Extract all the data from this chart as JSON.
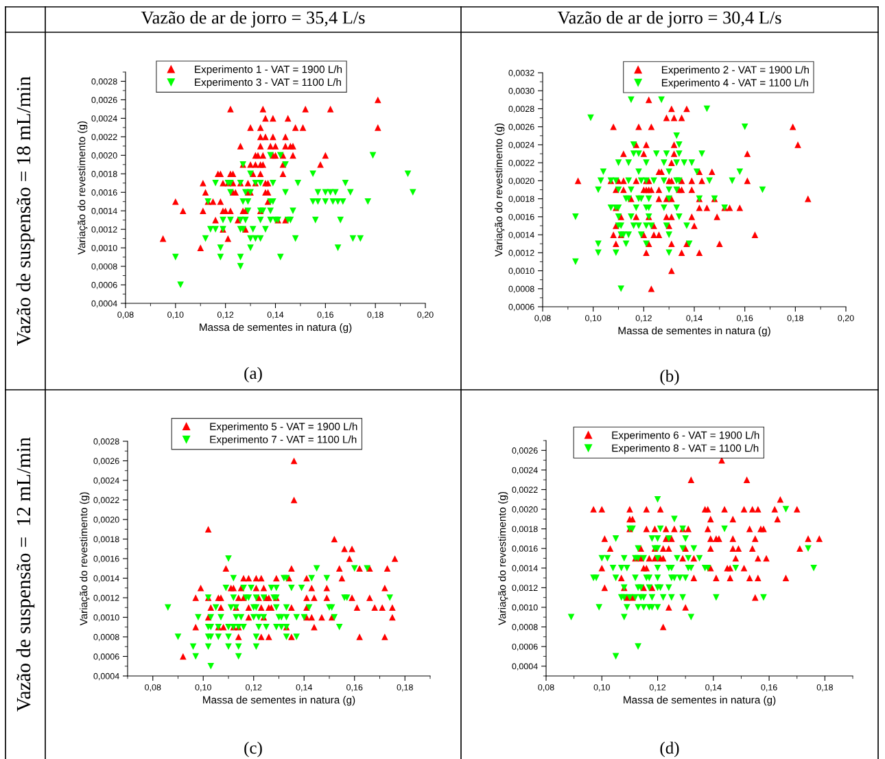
{
  "chart_data": [
    {
      "type": "scatter",
      "title": "Vazão de ar de jorro = 35,4 L/s",
      "xlabel": "Massa de sementes in natura (g)",
      "ylabel": "Variação do revestimento (g)",
      "annotations": [
        "Vazão de suspensão = 18 mL/min",
        "(a)"
      ],
      "xlim": [
        0.08,
        0.2
      ],
      "ylim": [
        0.0004,
        0.0029
      ],
      "xticks": [
        {
          "value": 0.08,
          "label": "0,08"
        },
        {
          "value": 0.1,
          "label": "0,10"
        },
        {
          "value": 0.12,
          "label": "0,12"
        },
        {
          "value": 0.14,
          "label": "0,14"
        },
        {
          "value": 0.16,
          "label": "0,16"
        },
        {
          "value": 0.18,
          "label": "0,18"
        },
        {
          "value": 0.2,
          "label": "0,20"
        }
      ],
      "yticks": [
        {
          "value": 0.0004,
          "label": "0,0004"
        },
        {
          "value": 0.0006,
          "label": "0,0006"
        },
        {
          "value": 0.0008,
          "label": "0,0008"
        },
        {
          "value": 0.001,
          "label": "0,0010"
        },
        {
          "value": 0.0012,
          "label": "0,0012"
        },
        {
          "value": 0.0014,
          "label": "0,0014"
        },
        {
          "value": 0.0016,
          "label": "0,0016"
        },
        {
          "value": 0.0018,
          "label": "0,0018"
        },
        {
          "value": 0.002,
          "label": "0,0020"
        },
        {
          "value": 0.0022,
          "label": "0,0022"
        },
        {
          "value": 0.0024,
          "label": "0,0024"
        },
        {
          "value": 0.0026,
          "label": "0,0026"
        },
        {
          "value": 0.0028,
          "label": "0,0028"
        }
      ],
      "grid": false,
      "legend": "top",
      "marker": "triangle",
      "series": [
        {
          "name": "Experimento 1 - VAT = 1900 L/h",
          "color": "#ff0000",
          "x": [
            0.181,
            0.122,
            0.135,
            0.152,
            0.162,
            0.136,
            0.139,
            0.145,
            0.13,
            0.134,
            0.148,
            0.151,
            0.181,
            0.134,
            0.136,
            0.139,
            0.144,
            0.126,
            0.134,
            0.138,
            0.14,
            0.144,
            0.146,
            0.147,
            0.132,
            0.133,
            0.135,
            0.139,
            0.14,
            0.143,
            0.147,
            0.16,
            0.127,
            0.13,
            0.132,
            0.134,
            0.135,
            0.143,
            0.158,
            0.117,
            0.118,
            0.122,
            0.123,
            0.131,
            0.134,
            0.143,
            0.111,
            0.119,
            0.121,
            0.123,
            0.126,
            0.129,
            0.132,
            0.136,
            0.137,
            0.112,
            0.123,
            0.124,
            0.129,
            0.13,
            0.136,
            0.137,
            0.1,
            0.113,
            0.115,
            0.118,
            0.137,
            0.103,
            0.111,
            0.119,
            0.12,
            0.122,
            0.127,
            0.128,
            0.134,
            0.116,
            0.125,
            0.141,
            0.144,
            0.119,
            0.128,
            0.095,
            0.121,
            0.11
          ],
          "values": [
            0.0026,
            0.0025,
            0.0025,
            0.0025,
            0.0025,
            0.0024,
            0.0024,
            0.0024,
            0.0023,
            0.0023,
            0.0023,
            0.0023,
            0.0023,
            0.0022,
            0.0022,
            0.0022,
            0.0022,
            0.0021,
            0.0021,
            0.0021,
            0.0021,
            0.0021,
            0.0021,
            0.0021,
            0.002,
            0.002,
            0.002,
            0.002,
            0.002,
            0.002,
            0.002,
            0.002,
            0.0019,
            0.0019,
            0.0019,
            0.0019,
            0.0019,
            0.0019,
            0.0019,
            0.0018,
            0.0018,
            0.0018,
            0.0018,
            0.0018,
            0.0018,
            0.0018,
            0.0017,
            0.0017,
            0.0017,
            0.0017,
            0.0017,
            0.0017,
            0.0017,
            0.0017,
            0.0017,
            0.0016,
            0.0016,
            0.0016,
            0.0016,
            0.0016,
            0.0016,
            0.0016,
            0.0015,
            0.0015,
            0.0015,
            0.0015,
            0.0015,
            0.0014,
            0.0014,
            0.0014,
            0.0014,
            0.0014,
            0.0014,
            0.0014,
            0.0014,
            0.0013,
            0.0013,
            0.0013,
            0.0013,
            0.0012,
            0.0012,
            0.0011,
            0.0011,
            0.001
          ]
        },
        {
          "name": "Experimento 3 - VAT = 1100 L/h",
          "color": "#00ff00",
          "x": [
            0.138,
            0.142,
            0.179,
            0.127,
            0.144,
            0.13,
            0.155,
            0.193,
            0.116,
            0.121,
            0.122,
            0.126,
            0.132,
            0.134,
            0.139,
            0.149,
            0.168,
            0.122,
            0.128,
            0.13,
            0.144,
            0.157,
            0.16,
            0.162,
            0.164,
            0.17,
            0.195,
            0.113,
            0.127,
            0.129,
            0.138,
            0.139,
            0.155,
            0.157,
            0.16,
            0.163,
            0.165,
            0.167,
            0.177,
            0.129,
            0.134,
            0.135,
            0.138,
            0.147,
            0.119,
            0.122,
            0.126,
            0.128,
            0.134,
            0.138,
            0.14,
            0.141,
            0.145,
            0.146,
            0.156,
            0.166,
            0.114,
            0.116,
            0.119,
            0.126,
            0.127,
            0.131,
            0.136,
            0.112,
            0.13,
            0.132,
            0.134,
            0.148,
            0.171,
            0.174,
            0.118,
            0.13,
            0.165,
            0.1,
            0.118,
            0.126,
            0.142,
            0.126,
            0.102
          ],
          "values": [
            0.002,
            0.002,
            0.002,
            0.0019,
            0.0019,
            0.0018,
            0.0018,
            0.0018,
            0.0017,
            0.0017,
            0.0017,
            0.0017,
            0.0017,
            0.0017,
            0.0017,
            0.0017,
            0.0017,
            0.0016,
            0.0016,
            0.0016,
            0.0016,
            0.0016,
            0.0016,
            0.0016,
            0.0016,
            0.0016,
            0.0016,
            0.0015,
            0.0015,
            0.0015,
            0.0015,
            0.0015,
            0.0015,
            0.0015,
            0.0015,
            0.0015,
            0.0015,
            0.0015,
            0.0015,
            0.0014,
            0.0014,
            0.0014,
            0.0014,
            0.0014,
            0.0013,
            0.0013,
            0.0013,
            0.0013,
            0.0013,
            0.0013,
            0.0013,
            0.0013,
            0.0013,
            0.0013,
            0.0013,
            0.0013,
            0.0012,
            0.0012,
            0.0012,
            0.0012,
            0.0012,
            0.0012,
            0.0012,
            0.0011,
            0.0011,
            0.0011,
            0.0011,
            0.0011,
            0.0011,
            0.0011,
            0.001,
            0.001,
            0.001,
            0.0009,
            0.0009,
            0.0009,
            0.0009,
            0.0008,
            0.0006
          ]
        }
      ]
    },
    {
      "type": "scatter",
      "title": "Vazão de ar de jorro = 30,4 L/s",
      "xlabel": "Massa de sementes in natura (g)",
      "ylabel": "Variação do revestimento (g)",
      "annotations": [
        "(b)"
      ],
      "xlim": [
        0.08,
        0.2
      ],
      "ylim": [
        0.0006,
        0.0032
      ],
      "xticks": [
        {
          "value": 0.08,
          "label": "0,08"
        },
        {
          "value": 0.1,
          "label": "0,10"
        },
        {
          "value": 0.12,
          "label": "0,12"
        },
        {
          "value": 0.14,
          "label": "0,14"
        },
        {
          "value": 0.16,
          "label": "0,16"
        },
        {
          "value": 0.18,
          "label": "0,18"
        },
        {
          "value": 0.2,
          "label": "0,20"
        }
      ],
      "yticks": [
        {
          "value": 0.0006,
          "label": "0,0006"
        },
        {
          "value": 0.0008,
          "label": "0,0008"
        },
        {
          "value": 0.001,
          "label": "0,0010"
        },
        {
          "value": 0.0012,
          "label": "0,0012"
        },
        {
          "value": 0.0014,
          "label": "0,0014"
        },
        {
          "value": 0.0016,
          "label": "0,0016"
        },
        {
          "value": 0.0018,
          "label": "0,0018"
        },
        {
          "value": 0.002,
          "label": "0,0020"
        },
        {
          "value": 0.0022,
          "label": "0,0022"
        },
        {
          "value": 0.0024,
          "label": "0,0024"
        },
        {
          "value": 0.0026,
          "label": "0,0026"
        },
        {
          "value": 0.0028,
          "label": "0,0028"
        },
        {
          "value": 0.003,
          "label": "0,0030"
        },
        {
          "value": 0.0032,
          "label": "0,0032"
        }
      ],
      "grid": false,
      "legend": "top",
      "marker": "triangle",
      "series": [
        {
          "name": "Experimento 2 - VAT = 1900 L/h",
          "color": "#ff0000",
          "x": [
            0.122,
            0.131,
            0.137,
            0.129,
            0.132,
            0.135,
            0.108,
            0.118,
            0.123,
            0.179,
            0.117,
            0.121,
            0.132,
            0.181,
            0.112,
            0.12,
            0.132,
            0.161,
            0.131,
            0.126,
            0.127,
            0.142,
            0.147,
            0.094,
            0.107,
            0.11,
            0.112,
            0.117,
            0.121,
            0.122,
            0.13,
            0.131,
            0.135,
            0.139,
            0.143,
            0.161,
            0.109,
            0.112,
            0.12,
            0.121,
            0.122,
            0.123,
            0.126,
            0.134,
            0.135,
            0.139,
            0.115,
            0.126,
            0.129,
            0.131,
            0.142,
            0.148,
            0.185,
            0.109,
            0.142,
            0.145,
            0.152,
            0.154,
            0.158,
            0.111,
            0.117,
            0.122,
            0.129,
            0.131,
            0.139,
            0.149,
            0.109,
            0.124,
            0.13,
            0.14,
            0.108,
            0.111,
            0.12,
            0.124,
            0.126,
            0.164,
            0.109,
            0.122,
            0.131,
            0.137,
            0.15,
            0.121,
            0.135,
            0.142,
            0.131,
            0.123
          ],
          "values": [
            0.0029,
            0.0028,
            0.0028,
            0.0027,
            0.0027,
            0.0027,
            0.0026,
            0.0026,
            0.0026,
            0.0026,
            0.0024,
            0.0024,
            0.0024,
            0.0024,
            0.0023,
            0.0023,
            0.0023,
            0.0023,
            0.0022,
            0.0021,
            0.0021,
            0.0021,
            0.0021,
            0.002,
            0.002,
            0.002,
            0.002,
            0.002,
            0.002,
            0.002,
            0.002,
            0.002,
            0.002,
            0.002,
            0.002,
            0.002,
            0.0019,
            0.0019,
            0.0019,
            0.0019,
            0.0019,
            0.0019,
            0.0019,
            0.0019,
            0.0019,
            0.0019,
            0.0018,
            0.0018,
            0.0018,
            0.0018,
            0.0018,
            0.0018,
            0.0018,
            0.0017,
            0.0017,
            0.0017,
            0.0017,
            0.0017,
            0.0017,
            0.0016,
            0.0016,
            0.0016,
            0.0016,
            0.0016,
            0.0016,
            0.0016,
            0.0015,
            0.0015,
            0.0015,
            0.0015,
            0.0014,
            0.0014,
            0.0014,
            0.0014,
            0.0014,
            0.0014,
            0.0013,
            0.0013,
            0.0013,
            0.0013,
            0.0013,
            0.0012,
            0.0012,
            0.0012,
            0.001,
            0.0008
          ]
        },
        {
          "name": "Experimento 4 - VAT = 1100 L/h",
          "color": "#00ff00",
          "x": [
            0.115,
            0.127,
            0.145,
            0.099,
            0.16,
            0.133,
            0.116,
            0.134,
            0.116,
            0.118,
            0.125,
            0.129,
            0.134,
            0.143,
            0.11,
            0.114,
            0.121,
            0.128,
            0.133,
            0.136,
            0.139,
            0.104,
            0.118,
            0.13,
            0.141,
            0.158,
            0.103,
            0.107,
            0.109,
            0.114,
            0.119,
            0.121,
            0.124,
            0.128,
            0.133,
            0.134,
            0.146,
            0.155,
            0.102,
            0.11,
            0.115,
            0.13,
            0.133,
            0.167,
            0.113,
            0.114,
            0.118,
            0.119,
            0.122,
            0.13,
            0.142,
            0.148,
            0.107,
            0.109,
            0.11,
            0.117,
            0.121,
            0.122,
            0.128,
            0.133,
            0.152,
            0.093,
            0.11,
            0.115,
            0.122,
            0.134,
            0.11,
            0.111,
            0.116,
            0.118,
            0.121,
            0.123,
            0.129,
            0.137,
            0.111,
            0.112,
            0.114,
            0.119,
            0.13,
            0.102,
            0.113,
            0.121,
            0.138,
            0.102,
            0.109,
            0.13,
            0.093,
            0.111
          ],
          "values": [
            0.0029,
            0.0029,
            0.0028,
            0.0027,
            0.0026,
            0.0025,
            0.0024,
            0.0024,
            0.0023,
            0.0023,
            0.0023,
            0.0023,
            0.0023,
            0.0023,
            0.0022,
            0.0022,
            0.0022,
            0.0022,
            0.0022,
            0.0022,
            0.0022,
            0.0021,
            0.0021,
            0.0021,
            0.0021,
            0.0021,
            0.002,
            0.002,
            0.002,
            0.002,
            0.002,
            0.002,
            0.002,
            0.002,
            0.002,
            0.002,
            0.002,
            0.002,
            0.0019,
            0.0019,
            0.0019,
            0.0019,
            0.0019,
            0.0019,
            0.0018,
            0.0018,
            0.0018,
            0.0018,
            0.0018,
            0.0018,
            0.0018,
            0.0018,
            0.0017,
            0.0017,
            0.0017,
            0.0017,
            0.0017,
            0.0017,
            0.0017,
            0.0017,
            0.0017,
            0.0016,
            0.0016,
            0.0016,
            0.0016,
            0.0016,
            0.0015,
            0.0015,
            0.0015,
            0.0015,
            0.0015,
            0.0015,
            0.0015,
            0.0015,
            0.0014,
            0.0014,
            0.0014,
            0.0014,
            0.0014,
            0.0013,
            0.0013,
            0.0013,
            0.0013,
            0.0012,
            0.0012,
            0.0012,
            0.0011,
            0.0008
          ]
        }
      ]
    },
    {
      "type": "scatter",
      "xlabel": "Massa de sementes in natura (g)",
      "ylabel": "Variação do revestimento (g)",
      "annotations": [
        "Vazão de suspensão =  12 mL/min",
        "(c)"
      ],
      "xlim": [
        0.07,
        0.19
      ],
      "ylim": [
        0.0004,
        0.0028
      ],
      "xticks": [
        {
          "value": 0.08,
          "label": "0,08"
        },
        {
          "value": 0.1,
          "label": "0,10"
        },
        {
          "value": 0.12,
          "label": "0,12"
        },
        {
          "value": 0.14,
          "label": "0,14"
        },
        {
          "value": 0.16,
          "label": "0,16"
        },
        {
          "value": 0.18,
          "label": "0,18"
        }
      ],
      "yticks": [
        {
          "value": 0.0004,
          "label": "0,0004"
        },
        {
          "value": 0.0006,
          "label": "0,0006"
        },
        {
          "value": 0.0008,
          "label": "0,0008"
        },
        {
          "value": 0.001,
          "label": "0,0010"
        },
        {
          "value": 0.0012,
          "label": "0,0012"
        },
        {
          "value": 0.0014,
          "label": "0,0014"
        },
        {
          "value": 0.0016,
          "label": "0,0016"
        },
        {
          "value": 0.0018,
          "label": "0,0018"
        },
        {
          "value": 0.002,
          "label": "0,0020"
        },
        {
          "value": 0.0022,
          "label": "0,0022"
        },
        {
          "value": 0.0024,
          "label": "0,0024"
        },
        {
          "value": 0.0026,
          "label": "0,0026"
        },
        {
          "value": 0.0028,
          "label": "0,0028"
        }
      ],
      "grid": false,
      "legend": "top",
      "marker": "triangle",
      "series": [
        {
          "name": "Experimento 5 - VAT = 1900 L/h",
          "color": "#ff0000",
          "x": [
            0.136,
            0.136,
            0.102,
            0.152,
            0.156,
            0.159,
            0.158,
            0.176,
            0.109,
            0.135,
            0.154,
            0.162,
            0.166,
            0.173,
            0.116,
            0.118,
            0.121,
            0.123,
            0.129,
            0.134,
            0.141,
            0.155,
            0.099,
            0.111,
            0.112,
            0.115,
            0.121,
            0.124,
            0.143,
            0.149,
            0.172,
            0.097,
            0.102,
            0.106,
            0.107,
            0.114,
            0.116,
            0.122,
            0.125,
            0.126,
            0.129,
            0.141,
            0.144,
            0.149,
            0.159,
            0.166,
            0.103,
            0.107,
            0.113,
            0.118,
            0.123,
            0.126,
            0.127,
            0.135,
            0.141,
            0.161,
            0.168,
            0.171,
            0.175,
            0.102,
            0.118,
            0.124,
            0.141,
            0.143,
            0.147,
            0.151,
            0.175,
            0.097,
            0.106,
            0.108,
            0.112,
            0.114,
            0.133,
            0.144,
            0.114,
            0.123,
            0.126,
            0.135,
            0.162,
            0.172,
            0.092
          ],
          "values": [
            0.0026,
            0.0022,
            0.0019,
            0.0018,
            0.0017,
            0.0017,
            0.0016,
            0.0016,
            0.0015,
            0.0015,
            0.0015,
            0.0015,
            0.0015,
            0.0015,
            0.0014,
            0.0014,
            0.0014,
            0.0014,
            0.0014,
            0.0014,
            0.0014,
            0.0014,
            0.0013,
            0.0013,
            0.0013,
            0.0013,
            0.0013,
            0.0013,
            0.0013,
            0.0013,
            0.0013,
            0.0012,
            0.0012,
            0.0012,
            0.0012,
            0.0012,
            0.0012,
            0.0012,
            0.0012,
            0.0012,
            0.0012,
            0.0012,
            0.0012,
            0.0012,
            0.0012,
            0.0012,
            0.0011,
            0.0011,
            0.0011,
            0.0011,
            0.0011,
            0.0011,
            0.0011,
            0.0011,
            0.0011,
            0.0011,
            0.0011,
            0.0011,
            0.0011,
            0.001,
            0.001,
            0.001,
            0.001,
            0.001,
            0.001,
            0.001,
            0.001,
            0.0009,
            0.0009,
            0.0009,
            0.0009,
            0.0009,
            0.0009,
            0.0009,
            0.0008,
            0.0008,
            0.0008,
            0.0008,
            0.0008,
            0.0008,
            0.0006
          ]
        },
        {
          "name": "Experimento 7 - VAT = 1100 L/h",
          "color": "#00ff00",
          "x": [
            0.11,
            0.145,
            0.16,
            0.165,
            0.112,
            0.132,
            0.133,
            0.143,
            0.149,
            0.109,
            0.116,
            0.119,
            0.127,
            0.129,
            0.135,
            0.139,
            0.102,
            0.112,
            0.117,
            0.118,
            0.121,
            0.124,
            0.128,
            0.129,
            0.156,
            0.157,
            0.174,
            0.086,
            0.105,
            0.111,
            0.113,
            0.12,
            0.121,
            0.129,
            0.133,
            0.142,
            0.15,
            0.151,
            0.098,
            0.103,
            0.107,
            0.113,
            0.115,
            0.12,
            0.122,
            0.124,
            0.13,
            0.131,
            0.133,
            0.137,
            0.14,
            0.152,
            0.102,
            0.103,
            0.106,
            0.11,
            0.112,
            0.114,
            0.116,
            0.122,
            0.125,
            0.129,
            0.131,
            0.133,
            0.154,
            0.09,
            0.102,
            0.103,
            0.106,
            0.11,
            0.121,
            0.133,
            0.137,
            0.096,
            0.102,
            0.11,
            0.114,
            0.121,
            0.097,
            0.114,
            0.103
          ],
          "values": [
            0.0016,
            0.0015,
            0.0015,
            0.0015,
            0.0014,
            0.0014,
            0.0014,
            0.0014,
            0.0014,
            0.0013,
            0.0013,
            0.0013,
            0.0013,
            0.0013,
            0.0013,
            0.0013,
            0.0012,
            0.0012,
            0.0012,
            0.0012,
            0.0012,
            0.0012,
            0.0012,
            0.0012,
            0.0012,
            0.0012,
            0.0012,
            0.0011,
            0.0011,
            0.0011,
            0.0011,
            0.0011,
            0.0011,
            0.0011,
            0.0011,
            0.0011,
            0.0011,
            0.0011,
            0.001,
            0.001,
            0.001,
            0.001,
            0.001,
            0.001,
            0.001,
            0.001,
            0.001,
            0.001,
            0.001,
            0.001,
            0.001,
            0.001,
            0.0009,
            0.0009,
            0.0009,
            0.0009,
            0.0009,
            0.0009,
            0.0009,
            0.0009,
            0.0009,
            0.0009,
            0.0009,
            0.0009,
            0.0009,
            0.0008,
            0.0008,
            0.0008,
            0.0008,
            0.0008,
            0.0008,
            0.0008,
            0.0008,
            0.0007,
            0.0007,
            0.0007,
            0.0007,
            0.0007,
            0.0006,
            0.0006,
            0.0005
          ]
        }
      ]
    },
    {
      "type": "scatter",
      "xlabel": "Massa de sementes in natura (g)",
      "ylabel": "Variação do revestimento (g)",
      "annotations": [
        "(d)"
      ],
      "xlim": [
        0.08,
        0.19
      ],
      "ylim": [
        0.0003,
        0.0027
      ],
      "xticks": [
        {
          "value": 0.08,
          "label": "0,08"
        },
        {
          "value": 0.1,
          "label": "0,10"
        },
        {
          "value": 0.12,
          "label": "0,12"
        },
        {
          "value": 0.14,
          "label": "0,14"
        },
        {
          "value": 0.16,
          "label": "0,16"
        },
        {
          "value": 0.18,
          "label": "0,18"
        }
      ],
      "yticks": [
        {
          "value": 0.0004,
          "label": "0,0004"
        },
        {
          "value": 0.0006,
          "label": "0,0006"
        },
        {
          "value": 0.0008,
          "label": "0,0008"
        },
        {
          "value": 0.001,
          "label": "0,0010"
        },
        {
          "value": 0.0012,
          "label": "0,0012"
        },
        {
          "value": 0.0014,
          "label": "0,0014"
        },
        {
          "value": 0.0016,
          "label": "0,0016"
        },
        {
          "value": 0.0018,
          "label": "0,0018"
        },
        {
          "value": 0.002,
          "label": "0,0020"
        },
        {
          "value": 0.0022,
          "label": "0,0022"
        },
        {
          "value": 0.0024,
          "label": "0,0024"
        },
        {
          "value": 0.0026,
          "label": "0,0026"
        }
      ],
      "grid": false,
      "legend": "top",
      "marker": "triangle",
      "series": [
        {
          "name": "Experimento 6 - VAT = 1900 L/h",
          "color": "#ff0000",
          "x": [
            0.143,
            0.132,
            0.152,
            0.164,
            0.097,
            0.1,
            0.11,
            0.116,
            0.121,
            0.137,
            0.138,
            0.144,
            0.151,
            0.154,
            0.156,
            0.162,
            0.17,
            0.11,
            0.111,
            0.139,
            0.147,
            0.163,
            0.11,
            0.116,
            0.119,
            0.123,
            0.126,
            0.129,
            0.131,
            0.138,
            0.153,
            0.157,
            0.158,
            0.101,
            0.123,
            0.125,
            0.139,
            0.141,
            0.142,
            0.147,
            0.155,
            0.174,
            0.178,
            0.103,
            0.114,
            0.119,
            0.122,
            0.124,
            0.13,
            0.139,
            0.147,
            0.149,
            0.154,
            0.171,
            0.112,
            0.114,
            0.117,
            0.119,
            0.121,
            0.122,
            0.129,
            0.133,
            0.148,
            0.156,
            0.159,
            0.1,
            0.115,
            0.116,
            0.139,
            0.145,
            0.146,
            0.151,
            0.107,
            0.133,
            0.141,
            0.146,
            0.153,
            0.156,
            0.166,
            0.101,
            0.108,
            0.115,
            0.118,
            0.109,
            0.111,
            0.155,
            0.124,
            0.13,
            0.122
          ],
          "values": [
            0.0025,
            0.0023,
            0.0023,
            0.0021,
            0.002,
            0.002,
            0.002,
            0.002,
            0.002,
            0.002,
            0.002,
            0.002,
            0.002,
            0.002,
            0.002,
            0.002,
            0.002,
            0.0019,
            0.0019,
            0.0019,
            0.0019,
            0.0019,
            0.0018,
            0.0018,
            0.0018,
            0.0018,
            0.0018,
            0.0018,
            0.0018,
            0.0018,
            0.0018,
            0.0018,
            0.0018,
            0.0017,
            0.0017,
            0.0017,
            0.0017,
            0.0017,
            0.0017,
            0.0017,
            0.0017,
            0.0017,
            0.0017,
            0.0016,
            0.0016,
            0.0016,
            0.0016,
            0.0016,
            0.0016,
            0.0016,
            0.0016,
            0.0016,
            0.0016,
            0.0016,
            0.0015,
            0.0015,
            0.0015,
            0.0015,
            0.0015,
            0.0015,
            0.0015,
            0.0015,
            0.0015,
            0.0015,
            0.0015,
            0.0014,
            0.0014,
            0.0014,
            0.0014,
            0.0014,
            0.0014,
            0.0014,
            0.0013,
            0.0013,
            0.0013,
            0.0013,
            0.0013,
            0.0013,
            0.0013,
            0.0012,
            0.0012,
            0.0012,
            0.0012,
            0.0011,
            0.0011,
            0.0011,
            0.001,
            0.001,
            0.0008
          ]
        },
        {
          "name": "Experimento 8 - VAT = 1100 L/h",
          "color": "#00ff00",
          "x": [
            0.12,
            0.166,
            0.126,
            0.11,
            0.111,
            0.121,
            0.129,
            0.144,
            0.105,
            0.118,
            0.12,
            0.124,
            0.13,
            0.113,
            0.119,
            0.12,
            0.129,
            0.133,
            0.174,
            0.1,
            0.102,
            0.108,
            0.112,
            0.113,
            0.115,
            0.12,
            0.127,
            0.131,
            0.135,
            0.104,
            0.107,
            0.109,
            0.12,
            0.124,
            0.125,
            0.131,
            0.132,
            0.137,
            0.138,
            0.148,
            0.176,
            0.097,
            0.098,
            0.105,
            0.112,
            0.116,
            0.117,
            0.12,
            0.125,
            0.126,
            0.128,
            0.13,
            0.108,
            0.113,
            0.114,
            0.117,
            0.12,
            0.121,
            0.124,
            0.107,
            0.108,
            0.11,
            0.112,
            0.114,
            0.115,
            0.118,
            0.122,
            0.125,
            0.129,
            0.141,
            0.158,
            0.099,
            0.109,
            0.113,
            0.115,
            0.117,
            0.118,
            0.12,
            0.089,
            0.108,
            0.132,
            0.113,
            0.105
          ],
          "values": [
            0.0021,
            0.002,
            0.0019,
            0.0018,
            0.0018,
            0.0018,
            0.0018,
            0.0018,
            0.0017,
            0.0017,
            0.0017,
            0.0017,
            0.0017,
            0.0016,
            0.0016,
            0.0016,
            0.0016,
            0.0016,
            0.0016,
            0.0015,
            0.0015,
            0.0015,
            0.0015,
            0.0015,
            0.0015,
            0.0015,
            0.0015,
            0.0015,
            0.0015,
            0.0014,
            0.0014,
            0.0014,
            0.0014,
            0.0014,
            0.0014,
            0.0014,
            0.0014,
            0.0014,
            0.0014,
            0.0014,
            0.0014,
            0.0013,
            0.0013,
            0.0013,
            0.0013,
            0.0013,
            0.0013,
            0.0013,
            0.0013,
            0.0013,
            0.0013,
            0.0013,
            0.0012,
            0.0012,
            0.0012,
            0.0012,
            0.0012,
            0.0012,
            0.0012,
            0.0011,
            0.0011,
            0.0011,
            0.0011,
            0.0011,
            0.0011,
            0.0011,
            0.0011,
            0.0011,
            0.0011,
            0.0011,
            0.0011,
            0.001,
            0.001,
            0.001,
            0.001,
            0.001,
            0.001,
            0.001,
            0.0009,
            0.0009,
            0.0009,
            0.0006,
            0.0005
          ]
        }
      ]
    }
  ]
}
